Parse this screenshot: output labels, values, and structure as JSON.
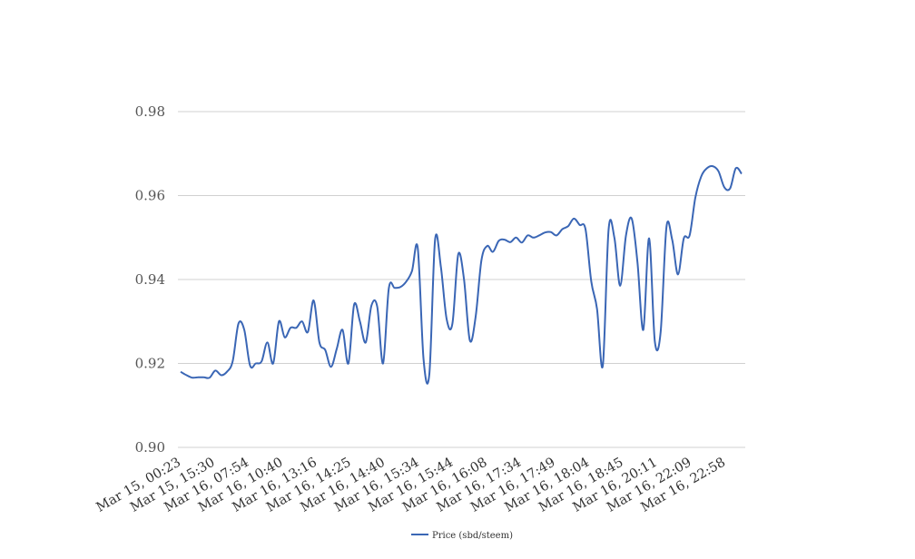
{
  "chart_data": {
    "type": "line",
    "title": "",
    "xlabel": "",
    "ylabel": "",
    "ylim": [
      0.9,
      0.98
    ],
    "yticks": [
      "0.90",
      "0.92",
      "0.94",
      "0.96",
      "0.98"
    ],
    "xticks": [
      "Mar 15, 00:23",
      "Mar 15, 15:30",
      "Mar 16, 07:54",
      "Mar 16, 10:40",
      "Mar 16, 13:16",
      "Mar 16, 14:25",
      "Mar 16, 14:40",
      "Mar 16, 15:34",
      "Mar 16, 15:44",
      "Mar 16, 16:08",
      "Mar 16, 17:34",
      "Mar 16, 17:49",
      "Mar 16, 18:04",
      "Mar 16, 18:45",
      "Mar 16, 20:11",
      "Mar 16, 22:09",
      "Mar 16, 22:58"
    ],
    "grid": true,
    "legend_position": "bottom",
    "series": [
      {
        "name": "Price (sbd/steem)",
        "color": "#3a66b5",
        "values": [
          0.918,
          0.9172,
          0.9166,
          0.9167,
          0.9167,
          0.9166,
          0.9183,
          0.9172,
          0.918,
          0.9205,
          0.9295,
          0.928,
          0.9195,
          0.92,
          0.9205,
          0.925,
          0.92,
          0.93,
          0.9262,
          0.9285,
          0.9285,
          0.93,
          0.9275,
          0.935,
          0.925,
          0.9232,
          0.9192,
          0.9235,
          0.928,
          0.92,
          0.934,
          0.93,
          0.925,
          0.9338,
          0.9335,
          0.92,
          0.938,
          0.938,
          0.9382,
          0.9395,
          0.942,
          0.9475,
          0.921,
          0.9175,
          0.9495,
          0.943,
          0.9305,
          0.9295,
          0.946,
          0.94,
          0.9255,
          0.931,
          0.9445,
          0.948,
          0.9466,
          0.9492,
          0.9495,
          0.9489,
          0.95,
          0.9488,
          0.9505,
          0.95,
          0.9505,
          0.9512,
          0.9513,
          0.9505,
          0.952,
          0.9527,
          0.9545,
          0.953,
          0.952,
          0.9395,
          0.933,
          0.9195,
          0.952,
          0.95,
          0.9385,
          0.9505,
          0.9545,
          0.944,
          0.928,
          0.9498,
          0.9252,
          0.9275,
          0.9525,
          0.9495,
          0.9412,
          0.9498,
          0.9505,
          0.9595,
          0.9645,
          0.9665,
          0.967,
          0.9658,
          0.962,
          0.9617,
          0.9665,
          0.9652
        ]
      }
    ]
  }
}
